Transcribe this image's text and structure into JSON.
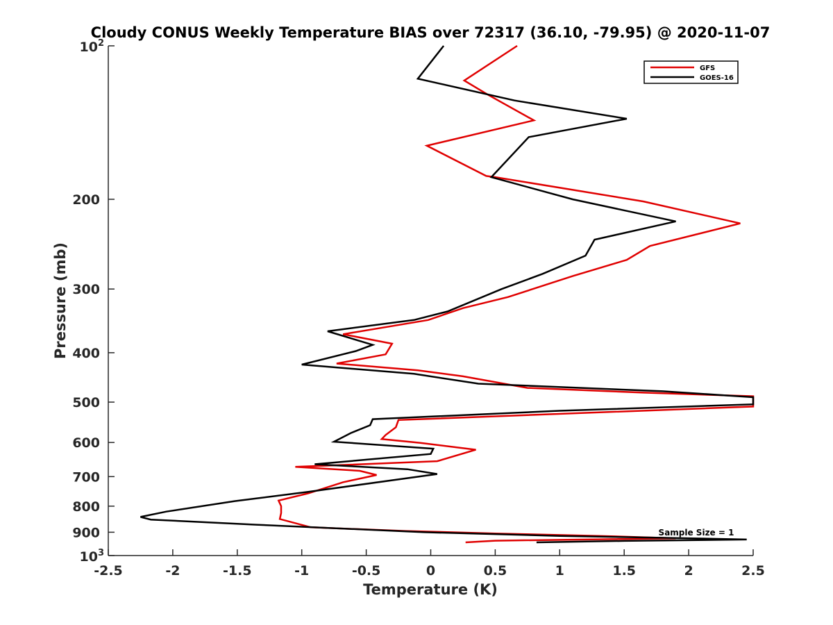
{
  "chart_data": {
    "type": "line",
    "title": "Cloudy CONUS Weekly Temperature BIAS over 72317 (36.10, -79.95) @ 2020-11-07",
    "xlabel": "Temperature (K)",
    "ylabel": "Pressure (mb)",
    "xlim": [
      -2.5,
      2.5
    ],
    "ylim": [
      100,
      1000
    ],
    "y_scale": "log",
    "y_reversed": true,
    "grid": false,
    "legend_position": "top-right",
    "x_ticks": [
      -2.5,
      -2,
      -1.5,
      -1,
      -0.5,
      0,
      0.5,
      1,
      1.5,
      2,
      2.5
    ],
    "x_tick_labels": [
      "-2.5",
      "-2",
      "-1.5",
      "-1",
      "-0.5",
      "0",
      "0.5",
      "1",
      "1.5",
      "2",
      "2.5"
    ],
    "y_ticks": [
      200,
      300,
      400,
      500,
      600,
      700,
      800,
      900
    ],
    "y_tick_labels": [
      "200",
      "300",
      "400",
      "500",
      "600",
      "700",
      "800",
      "900"
    ],
    "y_end_labels": [
      {
        "value": 100,
        "base": "10",
        "exp": "2"
      },
      {
        "value": 1000,
        "base": "10",
        "exp": "3"
      }
    ],
    "annotation": "Sample Size = 1",
    "series": [
      {
        "name": "GFS",
        "color": "#e00000",
        "points": [
          [
            0.67,
            100
          ],
          [
            0.26,
            117
          ],
          [
            0.45,
            125
          ],
          [
            0.8,
            140
          ],
          [
            -0.03,
            157
          ],
          [
            0.43,
            180
          ],
          [
            0.5,
            181
          ],
          [
            1.65,
            202
          ],
          [
            2.4,
            223
          ],
          [
            1.7,
            247
          ],
          [
            1.52,
            263
          ],
          [
            1.1,
            283
          ],
          [
            0.6,
            311
          ],
          [
            0.25,
            327
          ],
          [
            -0.02,
            345
          ],
          [
            -0.68,
            368
          ],
          [
            -0.3,
            384
          ],
          [
            -0.35,
            403
          ],
          [
            -0.73,
            420
          ],
          [
            -0.1,
            433
          ],
          [
            0.25,
            445
          ],
          [
            0.75,
            469
          ],
          [
            1.65,
            479
          ],
          [
            2.5,
            487
          ],
          [
            2.5,
            510
          ],
          [
            -0.25,
            542
          ],
          [
            -0.27,
            560
          ],
          [
            -0.35,
            580
          ],
          [
            -0.38,
            591
          ],
          [
            -0.08,
            601
          ],
          [
            0.35,
            620
          ],
          [
            0.05,
            653
          ],
          [
            -1.05,
            670
          ],
          [
            -0.55,
            682
          ],
          [
            -0.42,
            695
          ],
          [
            -0.68,
            718
          ],
          [
            -0.95,
            755
          ],
          [
            -1.18,
            780
          ],
          [
            -1.16,
            800
          ],
          [
            -1.16,
            825
          ],
          [
            -1.17,
            848
          ],
          [
            -0.93,
            880
          ],
          [
            -0.2,
            895
          ],
          [
            0.5,
            905
          ],
          [
            1.3,
            915
          ],
          [
            1.9,
            925
          ],
          [
            0.5,
            935
          ],
          [
            0.27,
            942
          ]
        ]
      },
      {
        "name": "GOES-16",
        "color": "#000000",
        "points": [
          [
            0.1,
            100
          ],
          [
            -0.1,
            116
          ],
          [
            0.65,
            128
          ],
          [
            1.52,
            139
          ],
          [
            0.76,
            151
          ],
          [
            0.47,
            181
          ],
          [
            1.1,
            200
          ],
          [
            1.9,
            221
          ],
          [
            1.27,
            240
          ],
          [
            1.2,
            258
          ],
          [
            0.87,
            280
          ],
          [
            0.55,
            300
          ],
          [
            0.13,
            332
          ],
          [
            -0.13,
            345
          ],
          [
            -0.8,
            363
          ],
          [
            -0.45,
            386
          ],
          [
            -0.58,
            397
          ],
          [
            -1.0,
            422
          ],
          [
            -0.13,
            440
          ],
          [
            0.37,
            460
          ],
          [
            1.8,
            476
          ],
          [
            2.5,
            489
          ],
          [
            2.5,
            505
          ],
          [
            1.0,
            520
          ],
          [
            -0.45,
            540
          ],
          [
            -0.47,
            555
          ],
          [
            -0.62,
            575
          ],
          [
            -0.75,
            598
          ],
          [
            0.02,
            617
          ],
          [
            0.0,
            632
          ],
          [
            -0.9,
            662
          ],
          [
            -0.18,
            677
          ],
          [
            0.05,
            692
          ],
          [
            -0.95,
            750
          ],
          [
            -1.52,
            782
          ],
          [
            -2.05,
            820
          ],
          [
            -2.25,
            840
          ],
          [
            -2.17,
            850
          ],
          [
            -1.35,
            870
          ],
          [
            -0.05,
            900
          ],
          [
            1.0,
            915
          ],
          [
            2.0,
            925
          ],
          [
            2.45,
            930
          ],
          [
            1.5,
            936
          ],
          [
            0.82,
            942
          ]
        ]
      }
    ]
  }
}
